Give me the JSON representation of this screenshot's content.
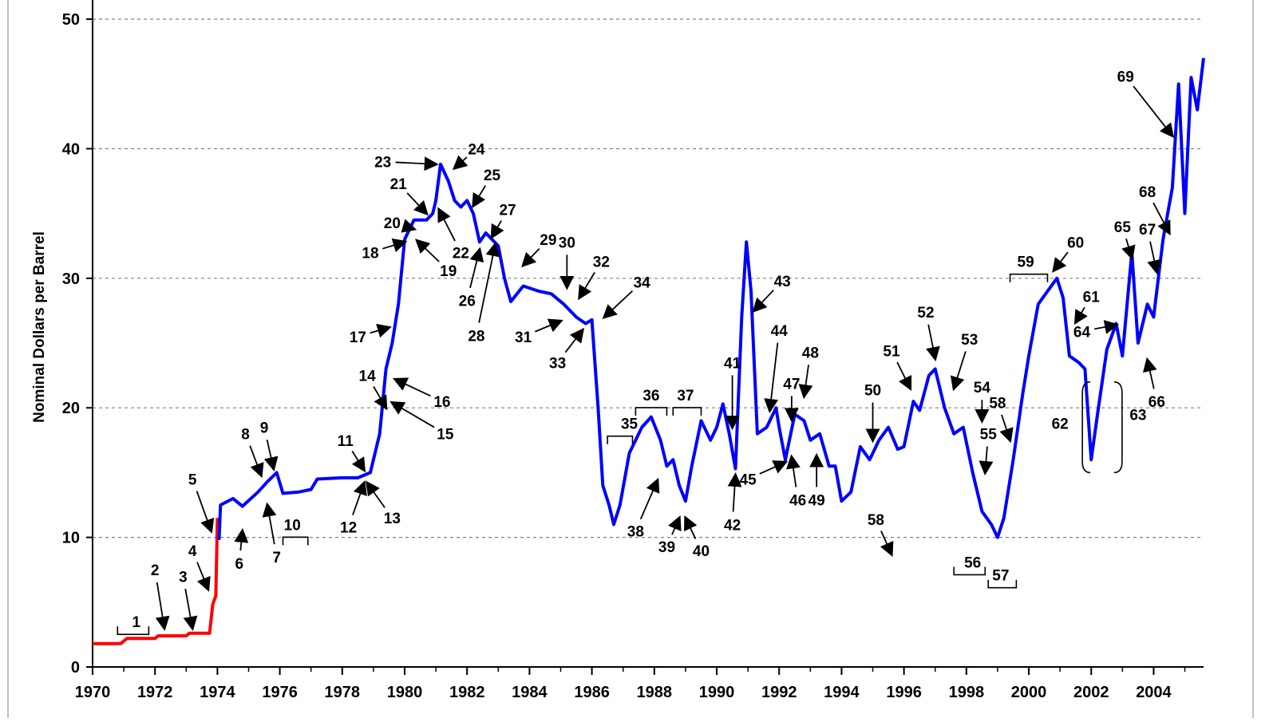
{
  "chart_data": {
    "type": "line",
    "title": "",
    "xlabel": "",
    "ylabel": "Nominal Dollars per Barrel",
    "xlim": [
      1970,
      2005.6
    ],
    "ylim": [
      0,
      50
    ],
    "y_ticks": [
      0,
      10,
      20,
      30,
      40,
      50
    ],
    "x_ticks": [
      "1970",
      "1972",
      "1974",
      "1976",
      "1978",
      "1980",
      "1982",
      "1984",
      "1986",
      "1988",
      "1990",
      "1992",
      "1994",
      "1996",
      "1998",
      "2000",
      "2002",
      "2004"
    ],
    "grid": "horizontal dashed",
    "colors": {
      "pre_1974": "#ff0000",
      "post_1974": "#0000ff",
      "axis": "#000000",
      "grid": "#808080"
    },
    "series": [
      {
        "color": "#ff0000",
        "points": [
          [
            1970,
            1.8
          ],
          [
            1970.9,
            1.8
          ],
          [
            1971.1,
            2.2
          ],
          [
            1972.0,
            2.2
          ],
          [
            1972.1,
            2.4
          ],
          [
            1973.0,
            2.4
          ],
          [
            1973.1,
            2.6
          ],
          [
            1973.75,
            2.6
          ],
          [
            1973.85,
            4.8
          ],
          [
            1973.95,
            5.5
          ],
          [
            1974.0,
            11.5
          ]
        ]
      },
      {
        "color": "#0000ff",
        "points": [
          [
            1974.05,
            9.8
          ],
          [
            1974.1,
            12.5
          ],
          [
            1974.5,
            13
          ],
          [
            1974.8,
            12.4
          ],
          [
            1975.3,
            13.5
          ],
          [
            1975.6,
            14.3
          ],
          [
            1975.9,
            15.0
          ],
          [
            1976.1,
            13.4
          ],
          [
            1976.6,
            13.5
          ],
          [
            1977.0,
            13.7
          ],
          [
            1977.2,
            14.5
          ],
          [
            1978.0,
            14.6
          ],
          [
            1978.5,
            14.6
          ],
          [
            1978.9,
            15.0
          ],
          [
            1979.2,
            18
          ],
          [
            1979.4,
            23
          ],
          [
            1979.6,
            25
          ],
          [
            1979.8,
            28
          ],
          [
            1980.0,
            33
          ],
          [
            1980.3,
            34.5
          ],
          [
            1980.7,
            34.5
          ],
          [
            1980.9,
            35
          ],
          [
            1981.0,
            36
          ],
          [
            1981.15,
            38.8
          ],
          [
            1981.4,
            37.5
          ],
          [
            1981.6,
            36
          ],
          [
            1981.8,
            35.5
          ],
          [
            1982.0,
            36.0
          ],
          [
            1982.2,
            35.0
          ],
          [
            1982.4,
            32.8
          ],
          [
            1982.6,
            33.5
          ],
          [
            1982.8,
            33.0
          ],
          [
            1983.0,
            32.5
          ],
          [
            1983.2,
            30
          ],
          [
            1983.4,
            28.2
          ],
          [
            1983.8,
            29.4
          ],
          [
            1984.3,
            29.0
          ],
          [
            1984.7,
            28.8
          ],
          [
            1985.1,
            28.0
          ],
          [
            1985.5,
            27.0
          ],
          [
            1985.8,
            26.5
          ],
          [
            1986.0,
            26.8
          ],
          [
            1986.2,
            20
          ],
          [
            1986.35,
            14
          ],
          [
            1986.55,
            12.5
          ],
          [
            1986.7,
            11.0
          ],
          [
            1986.9,
            12.5
          ],
          [
            1987.2,
            16.5
          ],
          [
            1987.6,
            18.5
          ],
          [
            1987.9,
            19.3
          ],
          [
            1988.2,
            17.5
          ],
          [
            1988.4,
            15.5
          ],
          [
            1988.6,
            16.0
          ],
          [
            1988.8,
            14.0
          ],
          [
            1989.0,
            12.8
          ],
          [
            1989.2,
            15.5
          ],
          [
            1989.5,
            19.0
          ],
          [
            1989.8,
            17.5
          ],
          [
            1990.0,
            18.5
          ],
          [
            1990.2,
            20.3
          ],
          [
            1990.4,
            18.0
          ],
          [
            1990.6,
            15.3
          ],
          [
            1990.8,
            27
          ],
          [
            1990.95,
            32.8
          ],
          [
            1991.1,
            29
          ],
          [
            1991.3,
            18.0
          ],
          [
            1991.6,
            18.5
          ],
          [
            1991.9,
            20.0
          ],
          [
            1992.0,
            18.5
          ],
          [
            1992.2,
            16.0
          ],
          [
            1992.5,
            19.5
          ],
          [
            1992.8,
            19.0
          ],
          [
            1993.0,
            17.5
          ],
          [
            1993.3,
            18.0
          ],
          [
            1993.6,
            15.5
          ],
          [
            1993.8,
            15.5
          ],
          [
            1994.0,
            12.8
          ],
          [
            1994.3,
            13.5
          ],
          [
            1994.6,
            17.0
          ],
          [
            1994.9,
            16.0
          ],
          [
            1995.2,
            17.5
          ],
          [
            1995.5,
            18.5
          ],
          [
            1995.8,
            16.8
          ],
          [
            1996.0,
            17.0
          ],
          [
            1996.3,
            20.5
          ],
          [
            1996.5,
            19.8
          ],
          [
            1996.8,
            22.5
          ],
          [
            1997.0,
            23.0
          ],
          [
            1997.3,
            20.0
          ],
          [
            1997.6,
            18.0
          ],
          [
            1997.9,
            18.5
          ],
          [
            1998.2,
            15.0
          ],
          [
            1998.5,
            12.0
          ],
          [
            1998.8,
            11.0
          ],
          [
            1999.0,
            10.0
          ],
          [
            1999.2,
            11.5
          ],
          [
            1999.5,
            16.0
          ],
          [
            1999.8,
            21.0
          ],
          [
            2000.0,
            24.0
          ],
          [
            2000.3,
            28.0
          ],
          [
            2000.6,
            29.0
          ],
          [
            2000.9,
            30.0
          ],
          [
            2001.1,
            28.5
          ],
          [
            2001.3,
            24.0
          ],
          [
            2001.6,
            23.5
          ],
          [
            2001.8,
            23.0
          ],
          [
            2002.0,
            16.0
          ],
          [
            2002.2,
            19.5
          ],
          [
            2002.5,
            24.5
          ],
          [
            2002.8,
            26.5
          ],
          [
            2003.0,
            24.0
          ],
          [
            2003.3,
            32.0
          ],
          [
            2003.5,
            25.0
          ],
          [
            2003.8,
            28.0
          ],
          [
            2004.0,
            27.0
          ],
          [
            2004.3,
            33.0
          ],
          [
            2004.6,
            37.0
          ],
          [
            2004.8,
            45.0
          ],
          [
            2005.0,
            35.0
          ],
          [
            2005.2,
            45.5
          ],
          [
            2005.4,
            43.0
          ],
          [
            2005.6,
            47.0
          ]
        ]
      }
    ],
    "annotations": [
      {
        "label": "1",
        "x": 1971.4,
        "y": 3.5,
        "type": "bracket",
        "x1": 1970.8,
        "x2": 1971.8
      },
      {
        "label": "2",
        "x": 1972.0,
        "y": 7.5,
        "type": "arrow",
        "tx": 1972.3,
        "ty": 3.0
      },
      {
        "label": "3",
        "x": 1972.9,
        "y": 7.0,
        "type": "arrow",
        "tx": 1973.2,
        "ty": 3.0
      },
      {
        "label": "4",
        "x": 1973.2,
        "y": 9.0,
        "type": "arrow",
        "tx": 1973.7,
        "ty": 6.0
      },
      {
        "label": "5",
        "x": 1973.2,
        "y": 14.5,
        "type": "arrow",
        "tx": 1973.8,
        "ty": 10.5
      },
      {
        "label": "6",
        "x": 1974.7,
        "y": 8.0,
        "type": "arrow",
        "tx": 1974.8,
        "ty": 10.5
      },
      {
        "label": "7",
        "x": 1975.9,
        "y": 8.5,
        "type": "arrow",
        "tx": 1975.6,
        "ty": 12.5
      },
      {
        "label": "8",
        "x": 1974.9,
        "y": 18.0,
        "type": "arrow",
        "tx": 1975.4,
        "ty": 14.8
      },
      {
        "label": "9",
        "x": 1975.5,
        "y": 18.5,
        "type": "arrow",
        "tx": 1975.8,
        "ty": 15.3
      },
      {
        "label": "10",
        "x": 1976.4,
        "y": 11.0,
        "type": "bracket",
        "x1": 1976.1,
        "x2": 1976.9
      },
      {
        "label": "11",
        "x": 1978.1,
        "y": 17.5,
        "type": "arrow",
        "tx": 1978.7,
        "ty": 15.2
      },
      {
        "label": "12",
        "x": 1978.2,
        "y": 10.8,
        "type": "arrow",
        "tx": 1978.7,
        "ty": 14.2
      },
      {
        "label": "13",
        "x": 1979.6,
        "y": 11.5,
        "type": "arrow",
        "tx": 1978.8,
        "ty": 14.2
      },
      {
        "label": "14",
        "x": 1978.8,
        "y": 22.5,
        "type": "arrow",
        "tx": 1979.4,
        "ty": 20.0
      },
      {
        "label": "15",
        "x": 1981.3,
        "y": 18.0,
        "type": "arrow",
        "tx": 1979.6,
        "ty": 20.4
      },
      {
        "label": "16",
        "x": 1981.2,
        "y": 20.5,
        "type": "arrow",
        "tx": 1979.7,
        "ty": 22.2
      },
      {
        "label": "17",
        "x": 1978.5,
        "y": 25.5,
        "type": "arrow",
        "tx": 1979.5,
        "ty": 26.2
      },
      {
        "label": "18",
        "x": 1978.9,
        "y": 32.0,
        "type": "arrow",
        "tx": 1980.0,
        "ty": 32.8
      },
      {
        "label": "19",
        "x": 1981.4,
        "y": 30.6,
        "type": "arrow",
        "tx": 1980.4,
        "ty": 32.9
      },
      {
        "label": "20",
        "x": 1979.6,
        "y": 34.3,
        "type": "arrow",
        "tx": 1980.3,
        "ty": 33.8
      },
      {
        "label": "21",
        "x": 1979.8,
        "y": 37.3,
        "type": "arrow",
        "tx": 1980.7,
        "ty": 35.0
      },
      {
        "label": "22",
        "x": 1981.8,
        "y": 32.0,
        "type": "arrow",
        "tx": 1981.1,
        "ty": 35.3
      },
      {
        "label": "23",
        "x": 1979.3,
        "y": 39.0,
        "type": "arrow",
        "tx": 1981.0,
        "ty": 38.8
      },
      {
        "label": "24",
        "x": 1982.3,
        "y": 40.0,
        "type": "arrow",
        "tx": 1981.6,
        "ty": 38.5
      },
      {
        "label": "25",
        "x": 1982.8,
        "y": 38.0,
        "type": "arrow",
        "tx": 1982.2,
        "ty": 35.6
      },
      {
        "label": "26",
        "x": 1982.0,
        "y": 28.3,
        "type": "arrow",
        "tx": 1982.4,
        "ty": 32.2
      },
      {
        "label": "27",
        "x": 1983.3,
        "y": 35.3,
        "type": "arrow",
        "tx": 1982.8,
        "ty": 33.2
      },
      {
        "label": "28",
        "x": 1982.3,
        "y": 25.6,
        "type": "arrow",
        "tx": 1982.9,
        "ty": 32.6
      },
      {
        "label": "29",
        "x": 1984.6,
        "y": 33.0,
        "type": "arrow",
        "tx": 1983.8,
        "ty": 31.0
      },
      {
        "label": "30",
        "x": 1985.2,
        "y": 32.8,
        "type": "arrow",
        "tx": 1985.2,
        "ty": 29.3
      },
      {
        "label": "31",
        "x": 1983.8,
        "y": 25.5,
        "type": "arrow",
        "tx": 1985.0,
        "ty": 26.7
      },
      {
        "label": "32",
        "x": 1986.3,
        "y": 31.3,
        "type": "arrow",
        "tx": 1985.6,
        "ty": 28.5
      },
      {
        "label": "33",
        "x": 1984.9,
        "y": 23.5,
        "type": "arrow",
        "tx": 1985.7,
        "ty": 26.0
      },
      {
        "label": "34",
        "x": 1987.6,
        "y": 29.7,
        "type": "arrow",
        "tx": 1986.4,
        "ty": 27.0
      },
      {
        "label": "35",
        "x": 1987.2,
        "y": 18.8,
        "type": "bracket",
        "x1": 1986.5,
        "x2": 1987.3
      },
      {
        "label": "36",
        "x": 1987.9,
        "y": 21.0,
        "type": "bracket",
        "x1": 1987.4,
        "x2": 1988.4
      },
      {
        "label": "37",
        "x": 1989.0,
        "y": 21.0,
        "type": "bracket",
        "x1": 1988.6,
        "x2": 1989.5
      },
      {
        "label": "38",
        "x": 1987.4,
        "y": 10.5,
        "type": "arrow",
        "tx": 1988.1,
        "ty": 14.4
      },
      {
        "label": "39",
        "x": 1988.4,
        "y": 9.3,
        "type": "arrow",
        "tx": 1988.8,
        "ty": 11.5
      },
      {
        "label": "40",
        "x": 1989.5,
        "y": 9.0,
        "type": "arrow",
        "tx": 1989.0,
        "ty": 11.5
      },
      {
        "label": "41",
        "x": 1990.5,
        "y": 23.5,
        "type": "arrow",
        "tx": 1990.5,
        "ty": 18.5
      },
      {
        "label": "42",
        "x": 1990.5,
        "y": 11.0,
        "type": "arrow",
        "tx": 1990.6,
        "ty": 14.8
      },
      {
        "label": "43",
        "x": 1992.1,
        "y": 29.8,
        "type": "arrow",
        "tx": 1991.2,
        "ty": 27.5
      },
      {
        "label": "44",
        "x": 1992.0,
        "y": 26.0,
        "type": "arrow",
        "tx": 1991.7,
        "ty": 19.8
      },
      {
        "label": "45",
        "x": 1991.0,
        "y": 14.5,
        "type": "arrow",
        "tx": 1992.2,
        "ty": 15.8
      },
      {
        "label": "46",
        "x": 1992.6,
        "y": 12.9,
        "type": "arrow",
        "tx": 1992.4,
        "ty": 16.2
      },
      {
        "label": "47",
        "x": 1992.4,
        "y": 21.9,
        "type": "arrow",
        "tx": 1992.4,
        "ty": 19.1
      },
      {
        "label": "48",
        "x": 1993.0,
        "y": 24.3,
        "type": "arrow",
        "tx": 1992.8,
        "ty": 20.9
      },
      {
        "label": "49",
        "x": 1993.2,
        "y": 12.9,
        "type": "arrow",
        "tx": 1993.2,
        "ty": 16.3
      },
      {
        "label": "50",
        "x": 1995.0,
        "y": 21.4,
        "type": "arrow",
        "tx": 1995.0,
        "ty": 17.5
      },
      {
        "label": "51",
        "x": 1995.6,
        "y": 24.4,
        "type": "arrow",
        "tx": 1996.2,
        "ty": 21.5
      },
      {
        "label": "52",
        "x": 1996.7,
        "y": 27.4,
        "type": "arrow",
        "tx": 1997.0,
        "ty": 23.8
      },
      {
        "label": "53",
        "x": 1998.1,
        "y": 25.3,
        "type": "arrow",
        "tx": 1997.6,
        "ty": 21.5
      },
      {
        "label": "54",
        "x": 1998.5,
        "y": 21.6,
        "type": "arrow",
        "tx": 1998.5,
        "ty": 19.0
      },
      {
        "label": "55",
        "x": 1998.7,
        "y": 18.0,
        "type": "arrow",
        "tx": 1998.6,
        "ty": 15.0
      },
      {
        "label": "56",
        "x": 1998.2,
        "y": 8.1,
        "type": "bracket",
        "x1": 1997.6,
        "x2": 1998.6
      },
      {
        "label": "57",
        "x": 1999.1,
        "y": 7.1,
        "type": "bracket",
        "x1": 1998.7,
        "x2": 1999.6
      },
      {
        "label": "58",
        "x": 1999.0,
        "y": 20.4,
        "type": "arrow",
        "tx": 1999.4,
        "ty": 17.5
      },
      {
        "label": "58",
        "x": 1995.1,
        "y": 11.4,
        "type": "arrow",
        "tx": 1995.6,
        "ty": 8.7
      },
      {
        "label": "59",
        "x": 1999.9,
        "y": 31.3,
        "type": "bracket",
        "x1": 1999.4,
        "x2": 2000.6
      },
      {
        "label": "60",
        "x": 2001.5,
        "y": 32.8,
        "type": "arrow",
        "tx": 2000.8,
        "ty": 30.6
      },
      {
        "label": "61",
        "x": 2002.0,
        "y": 28.6,
        "type": "arrow",
        "tx": 2001.5,
        "ty": 26.6
      },
      {
        "label": "62",
        "x": 2001.0,
        "y": 18.8,
        "type": "brace-v",
        "y1": 15.0,
        "y2": 22.0
      },
      {
        "label": "63",
        "x": 2003.5,
        "y": 19.5,
        "type": "brace-v",
        "y1": 15.0,
        "y2": 22.0
      },
      {
        "label": "64",
        "x": 2001.7,
        "y": 25.9,
        "type": "arrow",
        "tx": 2002.8,
        "ty": 26.4
      },
      {
        "label": "65",
        "x": 2003.0,
        "y": 34.0,
        "type": "arrow",
        "tx": 2003.3,
        "ty": 31.6
      },
      {
        "label": "66",
        "x": 2004.1,
        "y": 20.5,
        "type": "arrow",
        "tx": 2003.8,
        "ty": 23.7
      },
      {
        "label": "67",
        "x": 2003.8,
        "y": 33.8,
        "type": "arrow",
        "tx": 2004.1,
        "ty": 30.5
      },
      {
        "label": "68",
        "x": 2003.8,
        "y": 36.7,
        "type": "arrow",
        "tx": 2004.5,
        "ty": 33.5
      },
      {
        "label": "69",
        "x": 2003.1,
        "y": 45.6,
        "type": "arrow",
        "tx": 2004.6,
        "ty": 41.0
      }
    ]
  }
}
